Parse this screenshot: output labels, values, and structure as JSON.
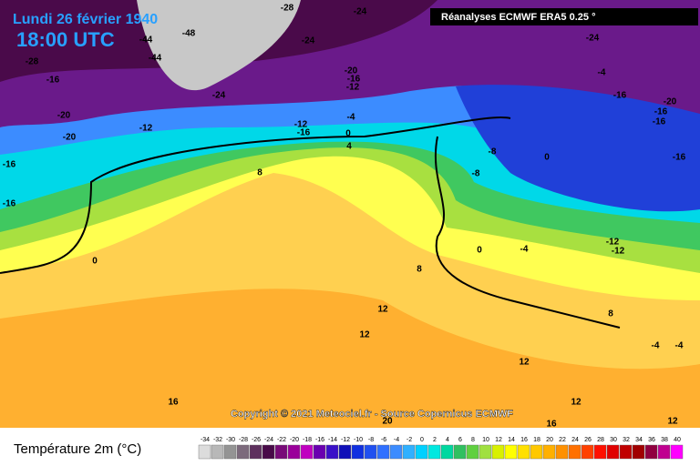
{
  "header": {
    "date": "Lundi 26 février 1940",
    "time": "18:00 UTC",
    "source": "Réanalyses ECMWF ERA5 0.25 °"
  },
  "copyright": "Copyright © 2021 Meteociel.fr - Source Copernicus ECMWF",
  "legend": {
    "title": "Température 2m (°C)",
    "ticks": [
      -34,
      -32,
      -30,
      -28,
      -26,
      -24,
      -22,
      -20,
      -18,
      -16,
      -14,
      -12,
      -10,
      -8,
      -6,
      -4,
      -2,
      0,
      2,
      4,
      6,
      8,
      10,
      12,
      14,
      16,
      18,
      20,
      22,
      24,
      26,
      28,
      30,
      32,
      34,
      36,
      38,
      40
    ],
    "colors": [
      "#dcdcdc",
      "#b8b8b8",
      "#949494",
      "#7c6a7c",
      "#5e305e",
      "#480a48",
      "#780a78",
      "#9a009a",
      "#c000c0",
      "#6a00b0",
      "#3a10c8",
      "#1010b8",
      "#1030e0",
      "#2050f0",
      "#3070ff",
      "#3c8cff",
      "#30b0ff",
      "#00d0ff",
      "#00e8e0",
      "#00d8a0",
      "#30c060",
      "#60d040",
      "#a0e040",
      "#d8f000",
      "#ffff00",
      "#ffe000",
      "#ffc800",
      "#ffb000",
      "#ff9000",
      "#ff7000",
      "#ff4000",
      "#ff1000",
      "#e00000",
      "#c00000",
      "#a00000",
      "#900040",
      "#c00090",
      "#ff00ff"
    ]
  },
  "map_labels": [
    -24,
    -24,
    -28,
    -48,
    -44,
    -44,
    -28,
    -16,
    -20,
    -20,
    -12,
    -16,
    -16,
    0,
    8,
    -12,
    -16,
    -4,
    0,
    4,
    -20,
    -16,
    -12,
    -8,
    -8,
    0,
    -4,
    -16,
    -16,
    -16,
    -12,
    -12,
    0,
    8,
    12,
    12,
    16,
    12,
    16,
    12,
    20,
    12,
    -4,
    -4,
    8,
    -20,
    -16,
    -24,
    -4,
    -24
  ]
}
